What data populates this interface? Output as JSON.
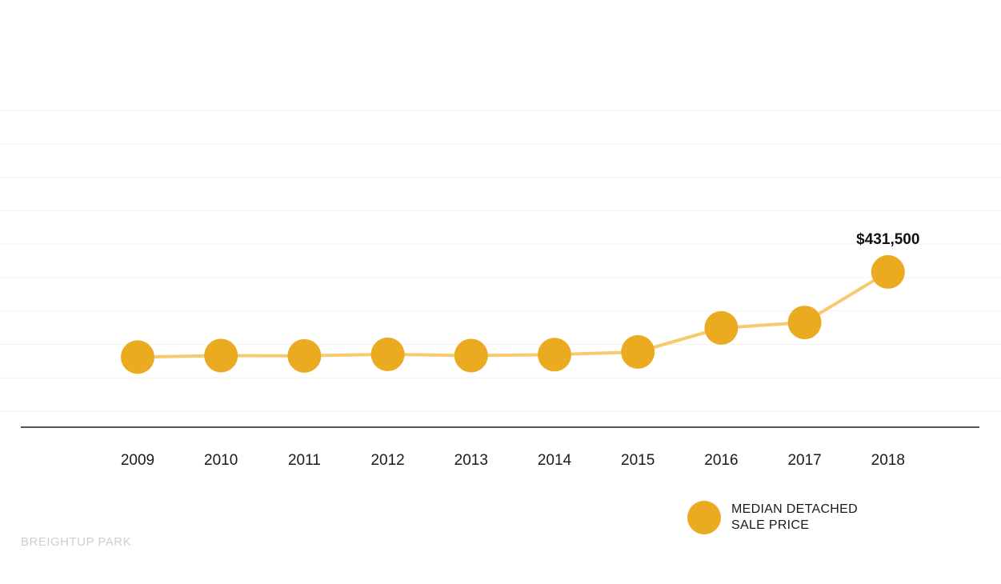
{
  "chart_data": {
    "type": "line",
    "categories": [
      "2009",
      "2010",
      "2011",
      "2012",
      "2013",
      "2014",
      "2015",
      "2016",
      "2017",
      "2018"
    ],
    "series": [
      {
        "name_lines": [
          "MEDIAN DETACHED",
          "SALE PRICE"
        ],
        "values": [
          290000,
          292500,
          292000,
          294500,
          292500,
          294000,
          298500,
          338500,
          347500,
          431500
        ]
      }
    ],
    "data_labels": [
      {
        "index": 9,
        "text": "$431,500"
      }
    ],
    "ylim": [
      200000,
      700000
    ],
    "grid": true,
    "legend_position": "bottom-right"
  },
  "colors": {
    "marker": "#ebab21",
    "line": "#f8ca6e",
    "gridline": "#f2f2f2",
    "baseline": "#555555"
  },
  "watermark": "BREIGHTUP PARK"
}
